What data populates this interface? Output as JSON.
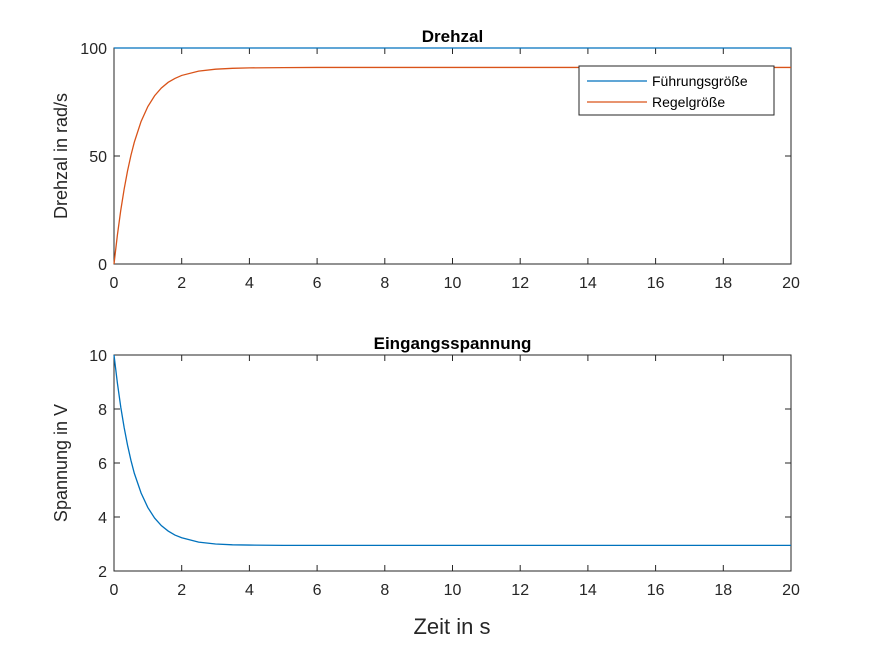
{
  "figure": {
    "xlabel": "Zeit in s",
    "colors": {
      "series1": "#0072BD",
      "series2": "#D95319",
      "axis": "#262626"
    }
  },
  "chart_data": [
    {
      "type": "line",
      "title": "Drehzal",
      "xlabel": "",
      "ylabel": "Drehzal in rad/s",
      "xlim": [
        0,
        20
      ],
      "ylim": [
        0,
        100
      ],
      "xticks": [
        "0",
        "2",
        "4",
        "6",
        "8",
        "10",
        "12",
        "14",
        "16",
        "18",
        "20"
      ],
      "yticks": [
        "0",
        "50",
        "100"
      ],
      "legend": {
        "position": "top-right"
      },
      "grid": false,
      "series": [
        {
          "name": "Führungsgröße",
          "color": "#0072BD",
          "x": [
            0,
            20
          ],
          "y": [
            100,
            100
          ]
        },
        {
          "name": "Regelgröße",
          "color": "#D95319",
          "x": [
            0,
            0.1,
            0.2,
            0.3,
            0.4,
            0.5,
            0.6,
            0.8,
            1.0,
            1.2,
            1.4,
            1.6,
            1.8,
            2.0,
            2.5,
            3.0,
            3.5,
            4.0,
            5.0,
            6.0,
            8.0,
            10.0,
            12.0,
            14.0,
            16.0,
            18.0,
            20.0
          ],
          "y": [
            0,
            13.4,
            24.9,
            34.7,
            43.1,
            50.3,
            56.4,
            66.0,
            72.9,
            77.9,
            81.5,
            84.1,
            85.9,
            87.3,
            89.3,
            90.2,
            90.6,
            90.8,
            90.9,
            91.0,
            91.0,
            91.0,
            91.0,
            91.0,
            91.0,
            91.0,
            91.0
          ]
        }
      ]
    },
    {
      "type": "line",
      "title": "Eingangsspannung",
      "xlabel": "",
      "ylabel": "Spannung in V",
      "xlim": [
        0,
        20
      ],
      "ylim": [
        2,
        10
      ],
      "xticks": [
        "0",
        "2",
        "4",
        "6",
        "8",
        "10",
        "12",
        "14",
        "16",
        "18",
        "20"
      ],
      "yticks": [
        "2",
        "4",
        "6",
        "8",
        "10"
      ],
      "grid": false,
      "series": [
        {
          "color": "#0072BD",
          "x": [
            0,
            0.1,
            0.2,
            0.3,
            0.4,
            0.5,
            0.6,
            0.8,
            1.0,
            1.2,
            1.4,
            1.6,
            1.8,
            2.0,
            2.5,
            3.0,
            3.5,
            4.0,
            5.0,
            6.0,
            8.0,
            10.0,
            12.0,
            14.0,
            16.0,
            18.0,
            20.0
          ],
          "y": [
            10.0,
            8.96,
            8.07,
            7.31,
            6.66,
            6.1,
            5.62,
            4.89,
            4.35,
            3.96,
            3.68,
            3.48,
            3.33,
            3.23,
            3.07,
            3.0,
            2.97,
            2.96,
            2.95,
            2.95,
            2.95,
            2.95,
            2.95,
            2.95,
            2.95,
            2.95,
            2.95
          ]
        }
      ]
    }
  ]
}
